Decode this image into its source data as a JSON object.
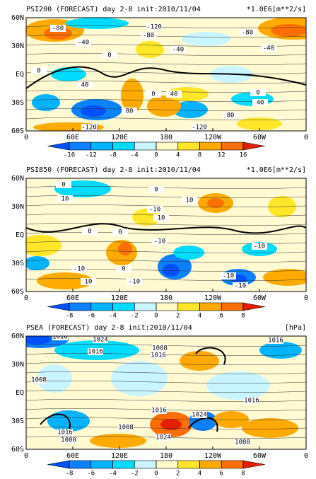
{
  "panels": [
    {
      "title": "PSI200 (FORECAST) day 2-8 init:2010/11/04",
      "units": "*1.0E6[m**2/s]",
      "lat_labels": [
        "60N",
        "30N",
        "EQ",
        "30S",
        "60S"
      ],
      "lon_labels": [
        "0",
        "60E",
        "120E",
        "180",
        "120W",
        "60W",
        "0"
      ],
      "colorbar": {
        "ticks": [
          -16,
          -12,
          -8,
          -4,
          0,
          4,
          8,
          12,
          16
        ],
        "colors": [
          "#0050ff",
          "#0a82ff",
          "#00b4ff",
          "#00dcff",
          "#c8f5ff",
          "#fffac8",
          "#ffe628",
          "#ffaa00",
          "#ff6e00",
          "#e61e00"
        ]
      },
      "contour_labels": [
        "-80",
        "-120",
        "-80",
        "-40",
        "-40",
        "-80",
        "-40",
        "0",
        "0",
        "40",
        "0",
        "40",
        "40",
        "0",
        "80",
        "80",
        "-120",
        "-120"
      ]
    },
    {
      "title": "PSI850 (FORECAST) day 2-8 init:2010/11/04",
      "units": "*1.0E6[m**2/s]",
      "lat_labels": [
        "60N",
        "30N",
        "EQ",
        "30S",
        "60S"
      ],
      "lon_labels": [
        "0",
        "60E",
        "120E",
        "180",
        "120W",
        "60W",
        "0"
      ],
      "colorbar": {
        "ticks": [
          -8,
          -6,
          -4,
          -2,
          0,
          2,
          4,
          6,
          8
        ],
        "colors": [
          "#0050ff",
          "#0a82ff",
          "#00b4ff",
          "#00dcff",
          "#c8f5ff",
          "#fffac8",
          "#ffe628",
          "#ffaa00",
          "#ff6e00",
          "#e61e00"
        ]
      },
      "contour_labels": [
        "0",
        "0",
        "10",
        "10",
        "-10",
        "10",
        "0",
        "0",
        "-10",
        "-10",
        "-10",
        "0",
        "-10",
        "-10",
        "10",
        "-10"
      ]
    },
    {
      "title": "PSEA (FORECAST) day 2-8 init:2010/11/04",
      "units": "[hPa]",
      "lat_labels": [
        "60N",
        "30N",
        "EQ",
        "30S",
        "60S"
      ],
      "lon_labels": [
        "0",
        "60E",
        "120E",
        "180",
        "120W",
        "60W",
        "0"
      ],
      "colorbar": {
        "ticks": [
          -8,
          -6,
          -4,
          -2,
          0,
          2,
          4,
          6,
          8
        ],
        "colors": [
          "#0050ff",
          "#0a82ff",
          "#00b4ff",
          "#00dcff",
          "#c8f5ff",
          "#fffac8",
          "#ffe628",
          "#ffaa00",
          "#ff6e00",
          "#e61e00"
        ]
      },
      "contour_labels": [
        "1016",
        "1024",
        "1016",
        "1016",
        "1008",
        "1016",
        "1008",
        "1016",
        "1016",
        "1024",
        "1016",
        "1008",
        "1000",
        "1024",
        "1008"
      ]
    }
  ]
}
